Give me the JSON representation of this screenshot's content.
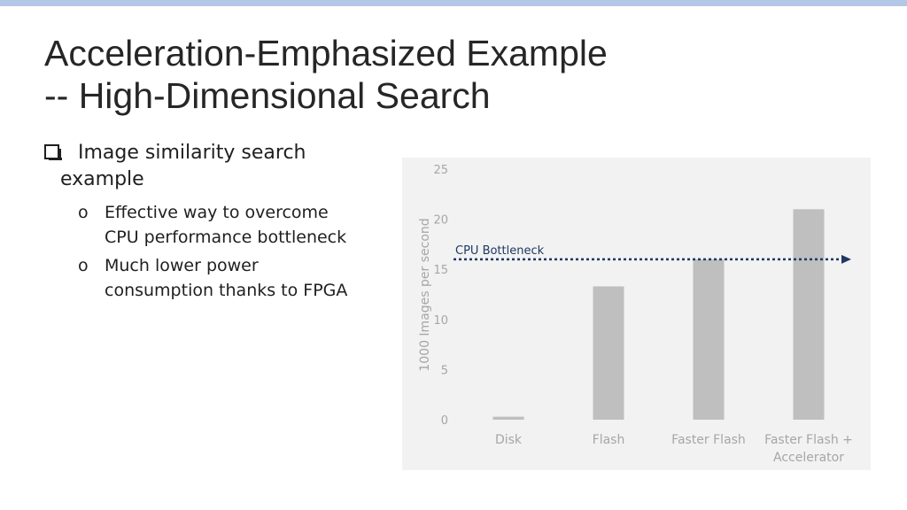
{
  "slide": {
    "title_line1": "Acceleration-Emphasized Example",
    "title_line2": "-- High-Dimensional Search"
  },
  "bullets": {
    "main_line1": "Image similarity search",
    "main_line2": "example",
    "sub": [
      {
        "marker": "o",
        "text": "Effective way to overcome\nCPU performance bottleneck"
      },
      {
        "marker": "o",
        "text": "Much lower power\nconsumption thanks to FPGA"
      }
    ]
  },
  "colors": {
    "bar": "#bfbfbf",
    "bottleneck": "#1f3864",
    "text_gray": "#a6a6a6",
    "chart_bg": "#f2f2f2"
  },
  "chart_data": {
    "type": "bar",
    "categories": [
      "Disk",
      "Flash",
      "Faster Flash",
      "Faster Flash + Accelerator"
    ],
    "category_lines": [
      [
        "Disk"
      ],
      [
        "Flash"
      ],
      [
        "Faster Flash"
      ],
      [
        "Faster Flash +",
        "Accelerator"
      ]
    ],
    "values": [
      0.3,
      13.3,
      16.0,
      21.0
    ],
    "ylabel": "1000 Images per second",
    "ylim": [
      0,
      25
    ],
    "yticks": [
      0,
      5,
      10,
      15,
      20,
      25
    ],
    "grid": false,
    "annotations": [
      {
        "type": "arrow",
        "label": "CPU Bottleneck",
        "y": 16.0
      }
    ]
  }
}
